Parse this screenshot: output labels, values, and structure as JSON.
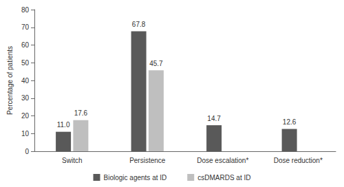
{
  "chart_data": {
    "type": "bar",
    "categories": [
      "Switch",
      "Persistence",
      "Dose escalation*",
      "Dose reduction*"
    ],
    "series": [
      {
        "name": "Biologic agents at ID",
        "color": "#595959",
        "values": [
          11.0,
          67.8,
          14.7,
          12.6
        ],
        "value_labels": [
          "11.0",
          "67.8",
          "14.7",
          "12.6"
        ]
      },
      {
        "name": "csDMARDS at ID",
        "color": "#bfbfbf",
        "values": [
          17.6,
          45.7,
          null,
          null
        ],
        "value_labels": [
          "17.6",
          "45.7",
          null,
          null
        ]
      }
    ],
    "ylabel": "Percentage of patients",
    "ylim": [
      0,
      80
    ],
    "yticks": [
      0,
      10,
      20,
      30,
      40,
      50,
      60,
      70,
      80
    ],
    "grid": false,
    "legend": "bottom",
    "data_labels": true
  }
}
